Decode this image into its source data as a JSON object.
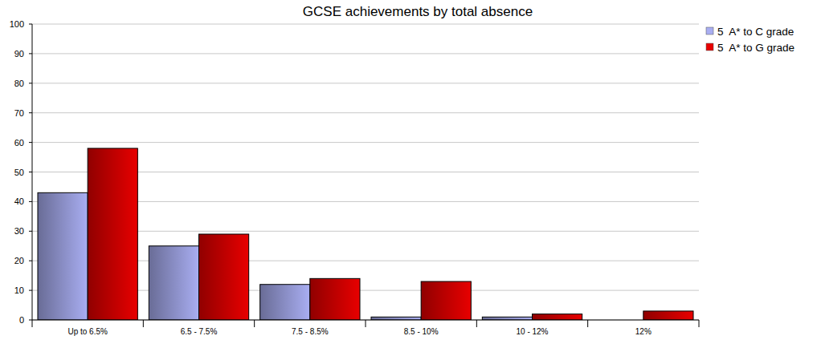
{
  "chart_data": {
    "type": "bar",
    "title": "GCSE achievements by total absence",
    "categories": [
      "Up to 6.5%",
      "6.5 - 7.5%",
      "7.5 - 8.5%",
      "8.5 - 10%",
      "10 - 12%",
      "12%"
    ],
    "series": [
      {
        "name": "5  A* to C grade",
        "color": "#a9aef2",
        "values": [
          43,
          25,
          12,
          1,
          1,
          0
        ]
      },
      {
        "name": "5  A* to G grade",
        "color": "#e80000",
        "values": [
          58,
          29,
          14,
          13,
          2,
          3
        ]
      }
    ],
    "ylim": [
      0,
      100
    ],
    "yticks": [
      0,
      10,
      20,
      30,
      40,
      50,
      60,
      70,
      80,
      90,
      100
    ],
    "grid": true,
    "legend": "top-right"
  }
}
